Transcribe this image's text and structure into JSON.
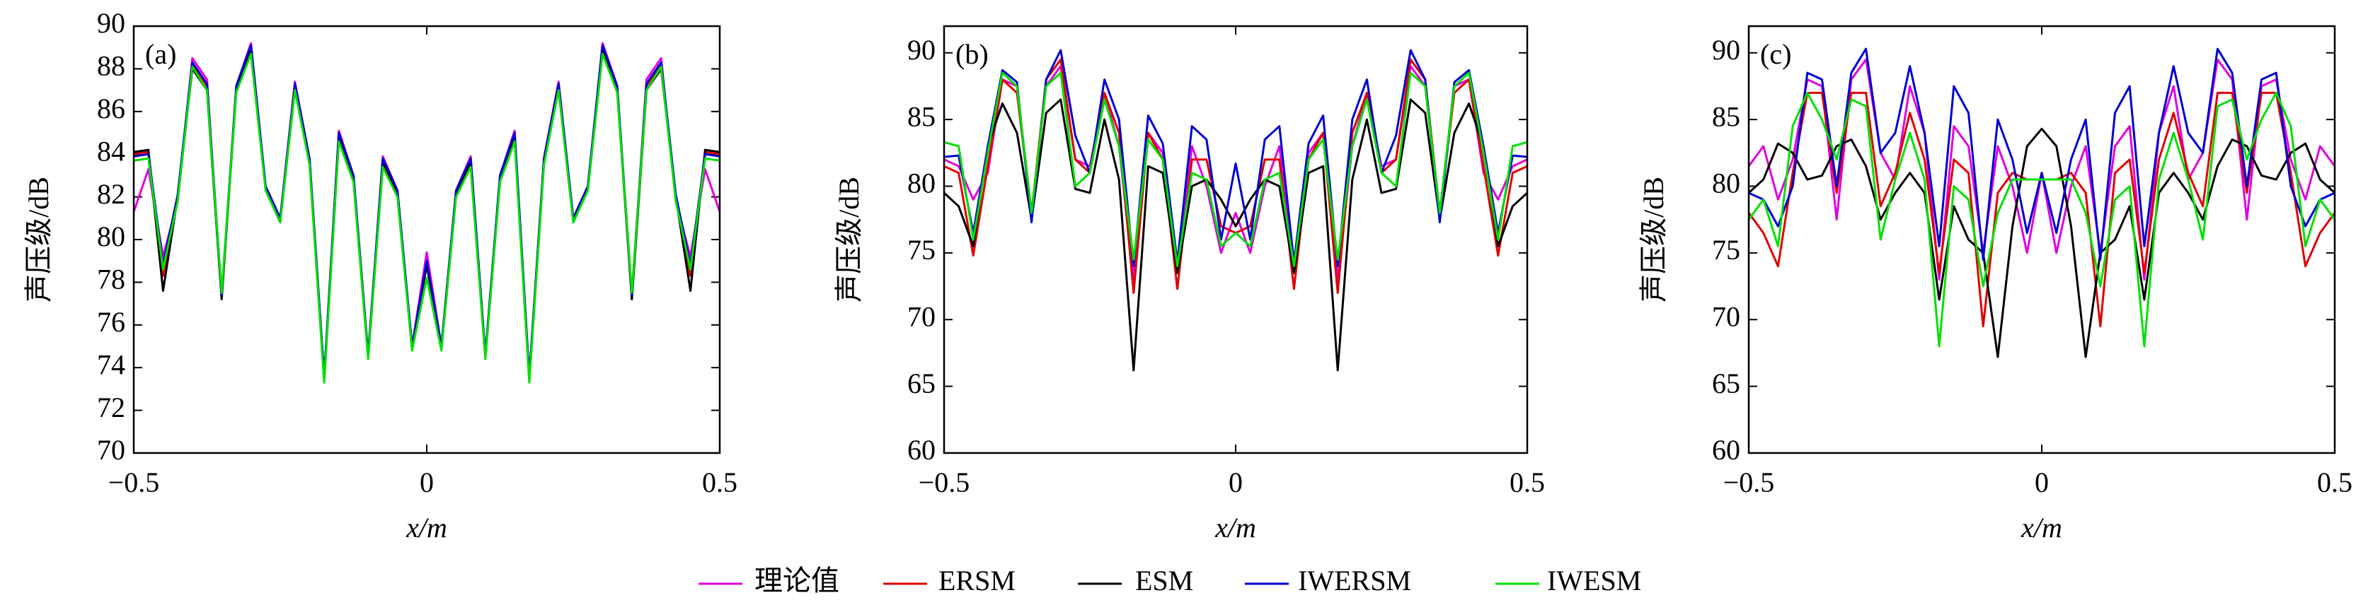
{
  "chart_data": [
    {
      "type": "line",
      "label": "(a)",
      "xlabel": "x/m",
      "ylabel": "声压级/dB",
      "x": [
        -0.5,
        -0.475,
        -0.45,
        -0.425,
        -0.4,
        -0.375,
        -0.35,
        -0.325,
        -0.3,
        -0.275,
        -0.25,
        -0.225,
        -0.2,
        -0.175,
        -0.15,
        -0.125,
        -0.1,
        -0.075,
        -0.05,
        -0.025,
        0,
        0.025,
        0.05,
        0.075,
        0.1,
        0.125,
        0.15,
        0.175,
        0.2,
        0.225,
        0.25,
        0.275,
        0.3,
        0.325,
        0.35,
        0.375,
        0.4,
        0.425,
        0.45,
        0.475,
        0.5
      ],
      "xlim": [
        -0.5,
        0.5
      ],
      "xticks": [
        {
          "value": -0.5,
          "label": "−0.5"
        },
        0,
        0.5
      ],
      "ylim": [
        70,
        90
      ],
      "yticks": [
        70,
        72,
        74,
        76,
        78,
        80,
        82,
        84,
        86,
        88,
        90
      ],
      "series": [
        {
          "name": "理论值",
          "color": "#e000e0",
          "values": [
            81.3,
            83.3,
            79.2,
            81.8,
            88.5,
            87.5,
            77.3,
            87.2,
            89.2,
            82.5,
            81.0,
            87.4,
            83.8,
            73.5,
            85.1,
            83.0,
            74.6,
            83.9,
            82.3,
            75.0,
            79.4,
            75.0,
            82.3,
            83.9,
            74.6,
            83.0,
            85.1,
            73.5,
            83.8,
            87.4,
            81.0,
            82.5,
            89.2,
            87.2,
            77.3,
            87.5,
            88.5,
            81.8,
            79.2,
            83.3,
            81.3
          ]
        },
        {
          "name": "ERSM",
          "color": "#e00000",
          "values": [
            84.0,
            84.1,
            78.3,
            82.0,
            88.2,
            87.2,
            77.3,
            87.1,
            89.0,
            82.4,
            80.9,
            87.2,
            83.7,
            73.5,
            84.9,
            82.9,
            74.5,
            83.7,
            82.2,
            74.9,
            78.9,
            74.9,
            82.2,
            83.7,
            74.5,
            82.9,
            84.9,
            73.5,
            83.7,
            87.2,
            80.9,
            82.4,
            89.0,
            87.1,
            77.3,
            87.2,
            88.2,
            82.0,
            78.3,
            84.1,
            84.0
          ]
        },
        {
          "name": "ESM",
          "color": "#000000",
          "values": [
            84.1,
            84.2,
            77.6,
            82.0,
            88.0,
            87.0,
            77.2,
            87.0,
            88.9,
            82.4,
            80.9,
            87.1,
            83.6,
            73.4,
            84.8,
            82.8,
            74.5,
            83.6,
            82.1,
            74.9,
            78.8,
            74.9,
            82.1,
            83.6,
            74.5,
            82.8,
            84.8,
            73.4,
            83.6,
            87.1,
            80.9,
            82.4,
            88.9,
            87.0,
            77.2,
            87.0,
            88.0,
            82.0,
            77.6,
            84.2,
            84.1
          ]
        },
        {
          "name": "IWERSM",
          "color": "#0000d0",
          "values": [
            83.9,
            84.0,
            78.8,
            82.1,
            88.3,
            87.3,
            77.4,
            87.2,
            89.1,
            82.5,
            81.0,
            87.3,
            83.8,
            73.6,
            85.0,
            83.0,
            74.6,
            83.8,
            82.3,
            75.0,
            79.0,
            75.0,
            82.3,
            83.8,
            74.6,
            83.0,
            85.0,
            73.6,
            83.8,
            87.3,
            81.0,
            82.5,
            89.1,
            87.2,
            77.4,
            87.3,
            88.3,
            82.1,
            78.8,
            84.0,
            83.9
          ]
        },
        {
          "name": "IWESM",
          "color": "#00e000",
          "values": [
            83.7,
            83.8,
            78.6,
            81.8,
            88.1,
            87.0,
            77.5,
            86.9,
            88.7,
            82.3,
            80.8,
            87.0,
            83.5,
            73.3,
            84.6,
            82.7,
            74.4,
            83.4,
            82.0,
            74.8,
            78.2,
            74.8,
            82.0,
            83.4,
            74.4,
            82.7,
            84.6,
            73.3,
            83.5,
            87.0,
            80.8,
            82.3,
            88.7,
            86.9,
            77.5,
            87.0,
            88.1,
            81.8,
            78.6,
            83.8,
            83.7
          ]
        }
      ]
    },
    {
      "type": "line",
      "label": "(b)",
      "xlabel": "x/m",
      "ylabel": "声压级/dB",
      "x": [
        -0.5,
        -0.475,
        -0.45,
        -0.425,
        -0.4,
        -0.375,
        -0.35,
        -0.325,
        -0.3,
        -0.275,
        -0.25,
        -0.225,
        -0.2,
        -0.175,
        -0.15,
        -0.125,
        -0.1,
        -0.075,
        -0.05,
        -0.025,
        0,
        0.025,
        0.05,
        0.075,
        0.1,
        0.125,
        0.15,
        0.175,
        0.2,
        0.225,
        0.25,
        0.275,
        0.3,
        0.325,
        0.35,
        0.375,
        0.4,
        0.425,
        0.45,
        0.475,
        0.5
      ],
      "xlim": [
        -0.5,
        0.5
      ],
      "xticks": [
        {
          "value": -0.5,
          "label": "−0.5"
        },
        0,
        0.5
      ],
      "ylim": [
        60,
        92
      ],
      "yticks": [
        60,
        65,
        70,
        75,
        80,
        85,
        90
      ],
      "series": [
        {
          "color": "#e000e0",
          "values": [
            82,
            81.5,
            79,
            81,
            88,
            87.5,
            78,
            87.5,
            89,
            82,
            81.5,
            87,
            83,
            73,
            84,
            82.5,
            73.5,
            83,
            80,
            75,
            78,
            75,
            80,
            83,
            73.5,
            82.5,
            84,
            73,
            83,
            87,
            81.5,
            82,
            89,
            87.5,
            78,
            87.5,
            88,
            81,
            79,
            81.5,
            82
          ]
        },
        {
          "color": "#e00000",
          "values": [
            81.5,
            81,
            74.8,
            81.5,
            88,
            87,
            78,
            88,
            89.5,
            82,
            81,
            87,
            84,
            72,
            84,
            82,
            72.3,
            82,
            82,
            77,
            76.5,
            77,
            82,
            82,
            72.3,
            82,
            84,
            72,
            84,
            87,
            81,
            82,
            89.5,
            88,
            78,
            87,
            88,
            81.5,
            74.8,
            81,
            81.5
          ]
        },
        {
          "color": "#000000",
          "values": [
            79.5,
            78.5,
            75.5,
            83,
            86.2,
            84,
            77.5,
            85.5,
            86.5,
            79.8,
            79.5,
            85,
            80.5,
            66.2,
            81.5,
            81,
            73.5,
            80,
            80.5,
            79,
            77,
            79,
            80.5,
            80,
            73.5,
            81,
            81.5,
            66.2,
            80.5,
            85,
            79.5,
            79.8,
            86.5,
            85.5,
            77.5,
            84,
            86.2,
            83,
            75.5,
            78.5,
            79.5
          ]
        },
        {
          "color": "#0000d0",
          "values": [
            82.2,
            82.3,
            76.5,
            83,
            88.7,
            87.8,
            77.3,
            88,
            90.2,
            83.8,
            81,
            88,
            85,
            74,
            85.3,
            83.2,
            74.3,
            84.5,
            83.5,
            76,
            81.7,
            76,
            83.5,
            84.5,
            74.3,
            83.2,
            85.3,
            74,
            85,
            88,
            81,
            83.8,
            90.2,
            88,
            77.3,
            87.8,
            88.7,
            83,
            76.5,
            82.3,
            82.2
          ]
        },
        {
          "color": "#00e000",
          "values": [
            83.3,
            83,
            76,
            82.5,
            88.5,
            87.5,
            78,
            87.5,
            88.5,
            80,
            81,
            86.5,
            83,
            74.5,
            83.5,
            82,
            74,
            81,
            80.5,
            75.5,
            76.5,
            75.5,
            80.5,
            81,
            74,
            82,
            83.5,
            74.5,
            83,
            86.5,
            81,
            80,
            88.5,
            87.5,
            78,
            87.5,
            88.5,
            82.5,
            76,
            83,
            83.3
          ]
        }
      ]
    },
    {
      "type": "line",
      "label": "(c)",
      "xlabel": "x/m",
      "ylabel": "声压级/dB",
      "x": [
        -0.5,
        -0.475,
        -0.45,
        -0.425,
        -0.4,
        -0.375,
        -0.35,
        -0.325,
        -0.3,
        -0.275,
        -0.25,
        -0.225,
        -0.2,
        -0.175,
        -0.15,
        -0.125,
        -0.1,
        -0.075,
        -0.05,
        -0.025,
        0,
        0.025,
        0.05,
        0.075,
        0.1,
        0.125,
        0.15,
        0.175,
        0.2,
        0.225,
        0.25,
        0.275,
        0.3,
        0.325,
        0.35,
        0.375,
        0.4,
        0.425,
        0.45,
        0.475,
        0.5
      ],
      "xlim": [
        -0.5,
        0.5
      ],
      "xticks": [
        {
          "value": -0.5,
          "label": "−0.5"
        },
        0,
        0.5
      ],
      "ylim": [
        60,
        92
      ],
      "yticks": [
        60,
        65,
        70,
        75,
        80,
        85,
        90
      ],
      "series": [
        {
          "color": "#e000e0",
          "values": [
            81.5,
            83,
            79,
            82,
            88,
            87.5,
            77.5,
            88,
            89.5,
            82.5,
            80.5,
            87.5,
            84,
            73,
            84.5,
            83,
            75,
            83,
            80,
            75,
            81,
            75,
            80,
            83,
            75,
            83,
            84.5,
            73,
            84,
            87.5,
            80.5,
            82.5,
            89.5,
            88,
            77.5,
            87.5,
            88,
            82,
            79,
            83,
            81.5
          ]
        },
        {
          "color": "#e00000",
          "values": [
            78,
            76.5,
            74,
            81,
            87,
            87,
            79.5,
            87,
            87,
            78.5,
            81,
            85.5,
            82,
            73.5,
            82,
            81,
            69.5,
            79.5,
            81,
            80.5,
            80.5,
            80.5,
            81,
            79.5,
            69.5,
            81,
            82,
            73.5,
            82,
            85.5,
            81,
            78.5,
            87,
            87,
            79.5,
            87,
            87,
            81,
            74,
            76.5,
            78
          ]
        },
        {
          "color": "#000000",
          "values": [
            79.5,
            80.5,
            83.2,
            82.5,
            80.5,
            80.8,
            83,
            83.5,
            81.5,
            77.5,
            79.5,
            81,
            79.5,
            71.5,
            78.5,
            76,
            75,
            67.2,
            77,
            83,
            84.3,
            83,
            77,
            67.2,
            75,
            76,
            78.5,
            71.5,
            79.5,
            81,
            79.5,
            77.5,
            81.5,
            83.5,
            83,
            80.8,
            80.5,
            82.5,
            83.2,
            80.5,
            79.5
          ]
        },
        {
          "color": "#0000d0",
          "values": [
            79.5,
            79,
            77,
            80,
            88.5,
            88,
            80,
            88.5,
            90.3,
            82.5,
            84,
            89,
            84,
            75.5,
            87.5,
            85.5,
            74.5,
            85,
            82,
            76.5,
            81,
            76.5,
            82,
            85,
            74.5,
            85.5,
            87.5,
            75.5,
            84,
            89,
            84,
            82.5,
            90.3,
            88.5,
            80,
            88,
            88.5,
            80,
            77,
            79,
            79.5
          ]
        },
        {
          "color": "#00e000",
          "values": [
            77.5,
            79,
            75.5,
            84.5,
            87,
            85,
            82,
            86.5,
            86,
            76,
            80.5,
            84,
            80.5,
            68,
            80,
            79,
            72.5,
            78,
            80.5,
            80.5,
            80.5,
            80.5,
            80.5,
            78,
            72.5,
            79,
            80,
            68,
            80.5,
            84,
            80.5,
            76,
            86,
            86.5,
            82,
            85,
            87,
            84.5,
            75.5,
            79,
            77.5
          ]
        }
      ]
    }
  ]
}
